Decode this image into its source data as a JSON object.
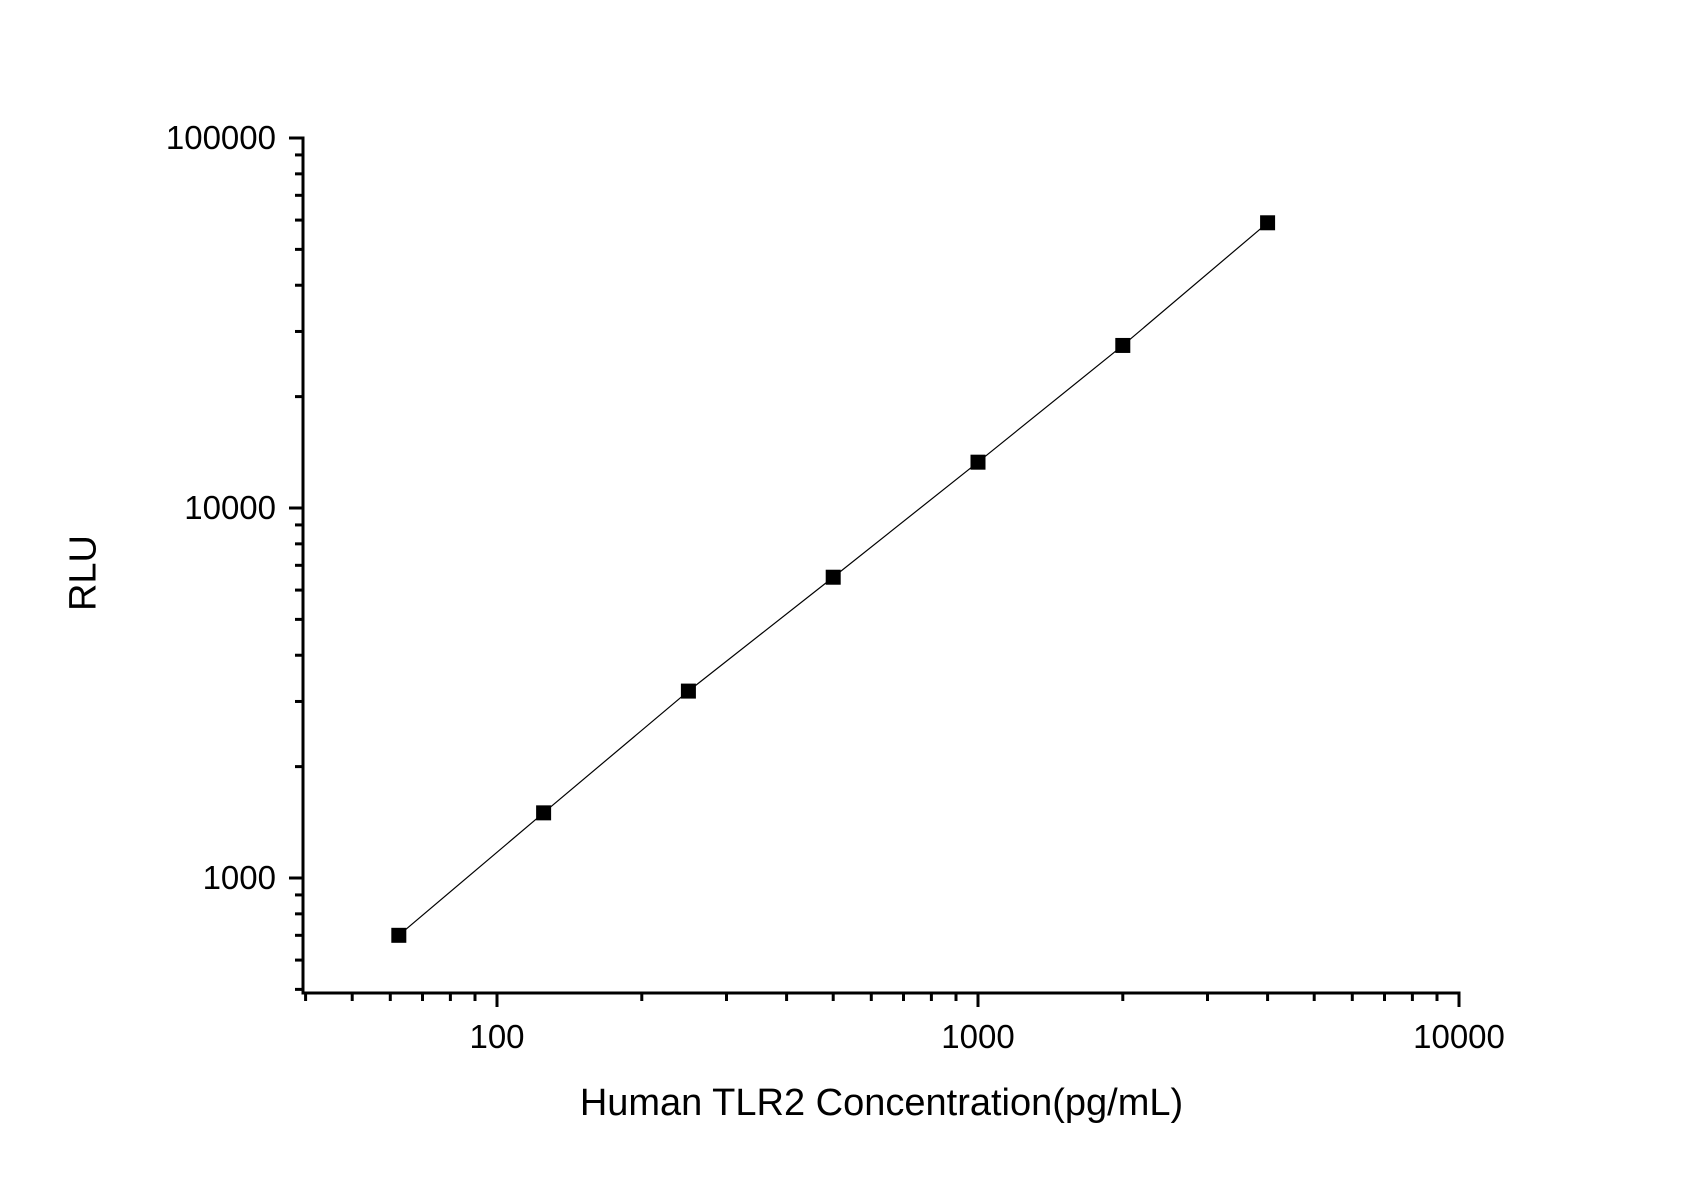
{
  "chart_data": {
    "type": "scatter",
    "subtype": "line-with-square-markers",
    "title": "",
    "xlabel": "Human TLR2 Concentration(pg/mL)",
    "ylabel": "RLU",
    "xscale": "log",
    "yscale": "log",
    "xlim": [
      40,
      10000
    ],
    "ylim": [
      490,
      100000
    ],
    "grid": false,
    "legend": null,
    "x": [
      62.5,
      125,
      250,
      500,
      1000,
      2000,
      4000
    ],
    "y": [
      700,
      1500,
      3200,
      6500,
      13300,
      27500,
      59000
    ],
    "x_major_ticks": [
      100,
      1000,
      10000
    ],
    "x_tick_labels": [
      "100",
      "1000",
      "10000"
    ],
    "y_major_ticks": [
      1000,
      10000,
      100000
    ],
    "y_tick_labels": [
      "1000",
      "10000",
      "100000"
    ],
    "marker": "black-filled-square",
    "colors": {
      "background": "#ffffff",
      "axis": "#000000",
      "line": "#000000",
      "marker": "#000000",
      "text": "#000000"
    }
  }
}
